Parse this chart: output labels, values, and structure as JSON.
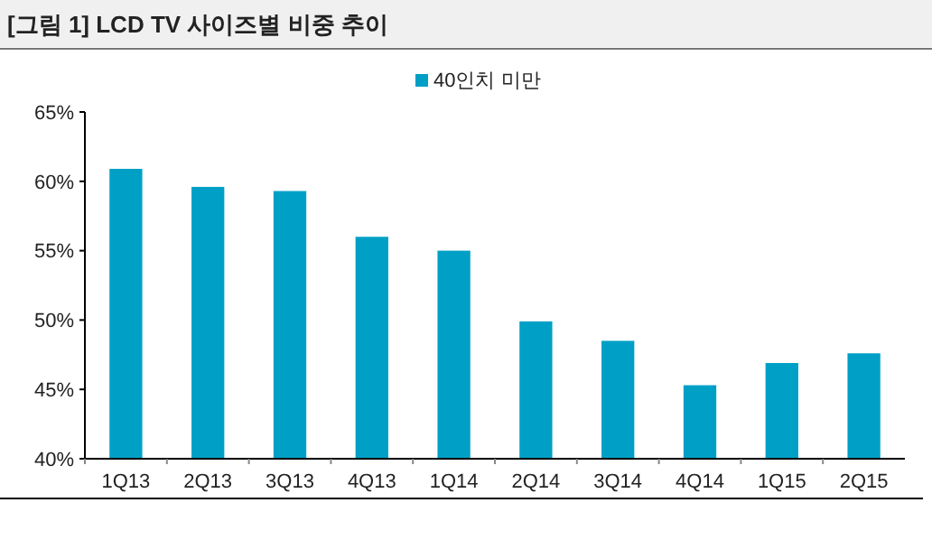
{
  "chart_data": {
    "type": "bar",
    "title": "[그림 1] LCD TV 사이즈별 비중 추이",
    "categories": [
      "1Q13",
      "2Q13",
      "3Q13",
      "4Q13",
      "1Q14",
      "2Q14",
      "3Q14",
      "4Q14",
      "1Q15",
      "2Q15"
    ],
    "series": [
      {
        "name": "40인치 미만",
        "color": "#00a0c6",
        "values": [
          60.9,
          59.6,
          59.3,
          56.0,
          55.0,
          49.9,
          48.5,
          45.3,
          46.9,
          47.6
        ]
      }
    ],
    "ylim": [
      40,
      65
    ],
    "yticks": [
      {
        "value": 40,
        "label": "40%"
      },
      {
        "value": 45,
        "label": "45%"
      },
      {
        "value": 50,
        "label": "50%"
      },
      {
        "value": 55,
        "label": "55%"
      },
      {
        "value": 60,
        "label": "60%"
      },
      {
        "value": 65,
        "label": "65%"
      }
    ],
    "legend": "top"
  }
}
